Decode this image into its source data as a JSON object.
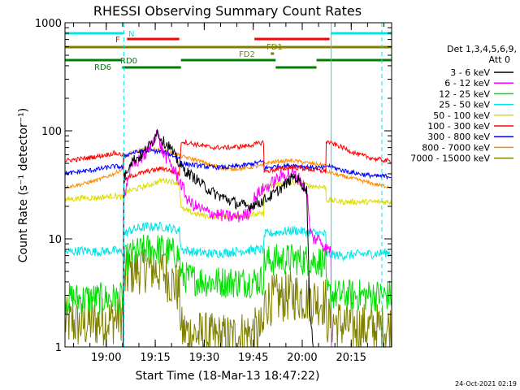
{
  "chart_data": {
    "type": "line",
    "title": "RHESSI Observing Summary Count Rates",
    "xlabel": "Start Time (18-Mar-13 18:47:22)",
    "ylabel": "Count Rate (s⁻¹ detector⁻¹)",
    "yscale": "log",
    "ylim": [
      1,
      1000
    ],
    "xlim_minutes_from_start": [
      0,
      100
    ],
    "x_tick_labels": [
      "19:00",
      "19:15",
      "19:30",
      "19:45",
      "20:00",
      "20:15"
    ],
    "x_tick_minutes": [
      12.63,
      27.63,
      42.63,
      57.63,
      72.63,
      87.63
    ],
    "y_tick_labels": [
      "1",
      "10",
      "100",
      "1000"
    ],
    "y_tick_values": [
      1,
      10,
      100,
      1000
    ],
    "legend_header": [
      "Det 1,3,4,5,6,9,",
      "Att 0"
    ],
    "legend_position": "right",
    "footer": "24-Oct-2021 02:19",
    "annotations": {
      "N": "N",
      "F": "F",
      "FD1": "FD1",
      "FD2": "FD2",
      "RD0": "RD0",
      "RD6": "RD6"
    },
    "flags": {
      "night": [
        [
          0,
          18
        ],
        [
          81.5,
          100
        ]
      ],
      "flare": [
        [
          19,
          35
        ],
        [
          58,
          81
        ]
      ],
      "fast_data": [
        [
          0,
          100
        ]
      ],
      "fast_data_hi": [
        [
          63,
          64
        ]
      ],
      "decim_0": [
        [
          0,
          17.5
        ],
        [
          35.5,
          64.5
        ],
        [
          77,
          100
        ]
      ],
      "decim_6": [
        [
          17.5,
          35.5
        ],
        [
          64.5,
          77
        ]
      ]
    },
    "saa_lines": [
      18,
      97
    ],
    "night_lines": [
      81.5
    ],
    "series": [
      {
        "name": "3 - 6 keV",
        "color": "#000000",
        "minutes": [
          0,
          5,
          10,
          14,
          17.9,
          18,
          20,
          23,
          25,
          27,
          28,
          30,
          32,
          34,
          36,
          38,
          40,
          43,
          46,
          50,
          53,
          56,
          60,
          64,
          68,
          70,
          72,
          74,
          75,
          76,
          77,
          78,
          80,
          81.4,
          81.6,
          82,
          84,
          86
        ],
        "values": [
          1,
          1,
          1,
          1,
          1,
          36,
          52,
          58,
          68,
          80,
          100,
          80,
          72,
          55,
          45,
          40,
          36,
          30,
          26,
          23,
          21,
          20,
          22,
          26,
          33,
          38,
          34,
          28,
          2,
          1,
          1,
          1,
          1,
          1,
          1,
          1,
          1,
          1
        ]
      },
      {
        "name": "6 - 12 keV",
        "color": "#ff00ff",
        "minutes": [
          0,
          10,
          14,
          17.9,
          18,
          20,
          23,
          25,
          27,
          28,
          30,
          32,
          34,
          36,
          37,
          38,
          40,
          43,
          46,
          50,
          53,
          56,
          58,
          60,
          63,
          66,
          68,
          70,
          72,
          74,
          75,
          76,
          78,
          80,
          81.4,
          81.6,
          82,
          84,
          86
        ],
        "values": [
          1,
          1,
          1,
          1,
          25,
          44,
          55,
          62,
          80,
          100,
          62,
          52,
          40,
          30,
          25,
          22,
          20,
          18,
          17,
          16,
          16,
          17,
          24,
          28,
          32,
          38,
          40,
          40,
          35,
          28,
          12,
          10,
          10,
          8,
          8,
          1,
          1,
          1,
          1
        ]
      },
      {
        "name": "12 - 25 keV",
        "color": "#00e000",
        "minutes": [
          0,
          5,
          10,
          15,
          17.9,
          18,
          20,
          25,
          30,
          35,
          35.6,
          40,
          45,
          50,
          55,
          60.9,
          61,
          65,
          70,
          75,
          79.9,
          80,
          85,
          90,
          95,
          100
        ],
        "values": [
          2.8,
          2.8,
          2.8,
          2.8,
          2.8,
          6,
          7,
          8,
          8,
          7,
          4.5,
          4.2,
          4,
          4,
          4,
          4.2,
          6.2,
          6.4,
          6.5,
          6.3,
          6.2,
          3.1,
          3,
          3,
          3,
          3
        ]
      },
      {
        "name": "25 - 50 keV",
        "color": "#00e5e5",
        "minutes": [
          0,
          5,
          10,
          15,
          17.9,
          18,
          20,
          25,
          30,
          35,
          35.6,
          40,
          45,
          50,
          55,
          60.9,
          61,
          65,
          70,
          75,
          79.9,
          80,
          85,
          90,
          95,
          100
        ],
        "values": [
          7.5,
          7.8,
          7.6,
          7.8,
          7.5,
          11,
          12,
          13,
          13,
          12,
          8,
          7.5,
          7.3,
          7.5,
          7.8,
          8,
          11,
          11.5,
          12,
          11.5,
          11,
          7.2,
          7,
          7.2,
          7.3,
          7.5
        ]
      },
      {
        "name": "50 - 100 keV",
        "color": "#dddd00",
        "minutes": [
          0,
          5,
          10,
          15,
          17.9,
          18,
          20,
          25,
          30,
          35,
          35.6,
          40,
          45,
          50,
          55,
          60.9,
          61,
          65,
          70,
          75,
          79.9,
          80,
          85,
          90,
          95,
          100
        ],
        "values": [
          23,
          24,
          24,
          25,
          24,
          27,
          28,
          31,
          35,
          33,
          19,
          17,
          16,
          16,
          16.5,
          17,
          29,
          32,
          33,
          31,
          30,
          23,
          22,
          22,
          22,
          22
        ]
      },
      {
        "name": "100 - 300 keV",
        "color": "#ff0000",
        "minutes": [
          0,
          5,
          10,
          15,
          17.9,
          18,
          20,
          25,
          30,
          35,
          35.6,
          40,
          45,
          50,
          55,
          60.9,
          61,
          65,
          70,
          75,
          79.9,
          80,
          85,
          90,
          95,
          100
        ],
        "values": [
          53,
          55,
          58,
          62,
          60,
          34,
          38,
          42,
          45,
          40,
          80,
          75,
          70,
          70,
          72,
          78,
          42,
          44,
          46,
          44,
          42,
          80,
          70,
          60,
          55,
          52
        ]
      },
      {
        "name": "300 - 800 keV",
        "color": "#0000ff",
        "minutes": [
          0,
          5,
          10,
          15,
          17.9,
          18,
          20,
          25,
          30,
          35,
          35.6,
          40,
          45,
          50,
          55,
          60.9,
          61,
          65,
          70,
          75,
          79.9,
          80,
          85,
          90,
          95,
          100
        ],
        "values": [
          40,
          42,
          44,
          47,
          46,
          58,
          62,
          66,
          64,
          56,
          50,
          48,
          46,
          46,
          48,
          52,
          45,
          47,
          48,
          46,
          45,
          48,
          43,
          40,
          38,
          38
        ]
      },
      {
        "name": "800 - 7000 keV",
        "color": "#ff8c00",
        "minutes": [
          0,
          5,
          10,
          15,
          17.9,
          18,
          20,
          25,
          30,
          35,
          35.6,
          40,
          45,
          50,
          55,
          60.9,
          61,
          65,
          70,
          75,
          79.9,
          80,
          85,
          90,
          95,
          100
        ],
        "values": [
          30,
          32,
          35,
          40,
          45,
          55,
          62,
          68,
          66,
          60,
          58,
          54,
          48,
          44,
          45,
          48,
          50,
          52,
          53,
          50,
          48,
          42,
          38,
          35,
          32,
          30
        ]
      },
      {
        "name": "7000 - 15000 keV",
        "color": "#808000",
        "minutes": [
          0,
          5,
          10,
          15,
          17.9,
          18,
          20,
          25,
          30,
          35,
          35.6,
          40,
          45,
          50,
          55,
          60.9,
          61,
          65,
          70,
          75,
          79.9,
          80,
          85,
          90,
          95,
          100
        ],
        "values": [
          1.7,
          1.6,
          1.7,
          1.8,
          2,
          4,
          5,
          5.5,
          5,
          3.3,
          1.4,
          1.3,
          1.2,
          1.2,
          1.3,
          1.4,
          2.6,
          2.8,
          3,
          2.8,
          2.6,
          1.8,
          1.6,
          1.5,
          1.5,
          1.5
        ]
      }
    ]
  }
}
